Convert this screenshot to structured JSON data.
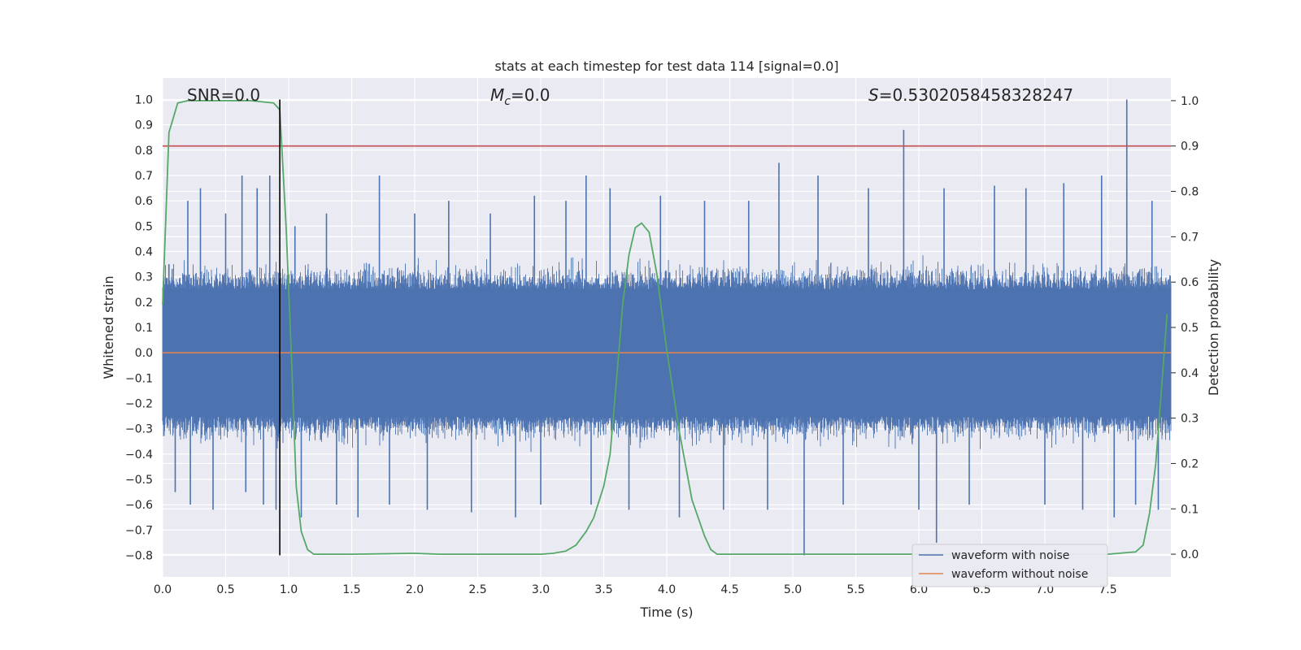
{
  "chart_data": {
    "type": "line",
    "title": "stats at each timestep for test data 114 [signal=0.0]",
    "xlabel": "Time (s)",
    "ylabel": "Whitened strain",
    "y2label": "Detection probability",
    "xlim": [
      0.0,
      8.0
    ],
    "ylim": [
      -0.885,
      1.085
    ],
    "y2lim": [
      -0.05,
      1.05
    ],
    "xticks": [
      "0.0",
      "0.5",
      "1.0",
      "1.5",
      "2.0",
      "2.5",
      "3.0",
      "3.5",
      "4.0",
      "4.5",
      "5.0",
      "5.5",
      "6.0",
      "6.5",
      "7.0",
      "7.5"
    ],
    "yticks": [
      "1.0",
      "0.9",
      "0.8",
      "0.7",
      "0.6",
      "0.5",
      "0.4",
      "0.3",
      "0.2",
      "0.1",
      "0.0",
      "−0.1",
      "−0.2",
      "−0.3",
      "−0.4",
      "−0.5",
      "−0.6",
      "−0.7",
      "−0.8"
    ],
    "y2ticks": [
      "1.0",
      "0.9",
      "0.8",
      "0.7",
      "0.6",
      "0.5",
      "0.4",
      "0.3",
      "0.2",
      "0.1",
      "0.0"
    ],
    "annotations": {
      "snr": "SNR=0.0",
      "mc_symbol": "M",
      "mc_sub": "c",
      "mc_value": "=0.0",
      "s_symbol": "S",
      "s_value": "=0.5302058458328247"
    },
    "grid": true,
    "legend_position": "lower right",
    "series": [
      {
        "name": "waveform with noise",
        "color": "#4c72b0",
        "axis": "left",
        "description_type": "noise",
        "noise_envelope": [
          0.25,
          -0.25
        ],
        "spikes": [
          {
            "x": 0.05,
            "y": 0.35
          },
          {
            "x": 0.1,
            "y": -0.55
          },
          {
            "x": 0.2,
            "y": 0.6
          },
          {
            "x": 0.22,
            "y": -0.6
          },
          {
            "x": 0.3,
            "y": 0.65
          },
          {
            "x": 0.4,
            "y": -0.62
          },
          {
            "x": 0.5,
            "y": 0.55
          },
          {
            "x": 0.63,
            "y": 0.7
          },
          {
            "x": 0.66,
            "y": -0.55
          },
          {
            "x": 0.75,
            "y": 0.65
          },
          {
            "x": 0.8,
            "y": -0.6
          },
          {
            "x": 0.85,
            "y": 0.7
          },
          {
            "x": 0.9,
            "y": -0.62
          },
          {
            "x": 1.05,
            "y": 0.5
          },
          {
            "x": 1.1,
            "y": -0.65
          },
          {
            "x": 1.3,
            "y": 0.55
          },
          {
            "x": 1.38,
            "y": -0.6
          },
          {
            "x": 1.55,
            "y": -0.65
          },
          {
            "x": 1.72,
            "y": 0.7
          },
          {
            "x": 1.8,
            "y": -0.6
          },
          {
            "x": 2.0,
            "y": 0.55
          },
          {
            "x": 2.1,
            "y": -0.62
          },
          {
            "x": 2.27,
            "y": 0.6
          },
          {
            "x": 2.45,
            "y": -0.63
          },
          {
            "x": 2.6,
            "y": 0.55
          },
          {
            "x": 2.8,
            "y": -0.65
          },
          {
            "x": 2.95,
            "y": 0.62
          },
          {
            "x": 3.0,
            "y": -0.6
          },
          {
            "x": 3.2,
            "y": 0.6
          },
          {
            "x": 3.36,
            "y": 0.7
          },
          {
            "x": 3.4,
            "y": -0.6
          },
          {
            "x": 3.55,
            "y": 0.65
          },
          {
            "x": 3.7,
            "y": -0.62
          },
          {
            "x": 3.95,
            "y": 0.62
          },
          {
            "x": 4.1,
            "y": -0.65
          },
          {
            "x": 4.3,
            "y": 0.6
          },
          {
            "x": 4.45,
            "y": -0.62
          },
          {
            "x": 4.65,
            "y": 0.6
          },
          {
            "x": 4.8,
            "y": -0.62
          },
          {
            "x": 4.89,
            "y": 0.75
          },
          {
            "x": 5.09,
            "y": -0.8
          },
          {
            "x": 5.2,
            "y": 0.7
          },
          {
            "x": 5.4,
            "y": -0.6
          },
          {
            "x": 5.6,
            "y": 0.65
          },
          {
            "x": 5.88,
            "y": 0.88
          },
          {
            "x": 6.0,
            "y": -0.62
          },
          {
            "x": 6.14,
            "y": -0.75
          },
          {
            "x": 6.2,
            "y": 0.65
          },
          {
            "x": 6.4,
            "y": -0.6
          },
          {
            "x": 6.6,
            "y": 0.66
          },
          {
            "x": 6.85,
            "y": 0.65
          },
          {
            "x": 7.0,
            "y": -0.6
          },
          {
            "x": 7.15,
            "y": 0.67
          },
          {
            "x": 7.3,
            "y": -0.62
          },
          {
            "x": 7.45,
            "y": 0.7
          },
          {
            "x": 7.55,
            "y": -0.65
          },
          {
            "x": 7.65,
            "y": 1.0
          },
          {
            "x": 7.72,
            "y": -0.6
          },
          {
            "x": 7.85,
            "y": 0.6
          },
          {
            "x": 7.9,
            "y": -0.62
          }
        ]
      },
      {
        "name": "waveform without noise",
        "color": "#dd8452",
        "axis": "left",
        "x": [
          0.0,
          8.0
        ],
        "y": [
          0.0,
          0.0
        ]
      },
      {
        "color": "#55a868",
        "axis": "right",
        "x": [
          0.0,
          0.05,
          0.12,
          0.2,
          0.3,
          0.5,
          0.7,
          0.88,
          0.93,
          0.98,
          1.02,
          1.06,
          1.1,
          1.15,
          1.2,
          1.5,
          2.0,
          2.2,
          3.0,
          3.1,
          3.2,
          3.28,
          3.36,
          3.42,
          3.5,
          3.55,
          3.6,
          3.65,
          3.7,
          3.75,
          3.8,
          3.86,
          3.92,
          4.0,
          4.1,
          4.2,
          4.3,
          4.35,
          4.4,
          4.6,
          5.0,
          6.0,
          7.0,
          7.5,
          7.72,
          7.78,
          7.83,
          7.88,
          7.93,
          7.97
        ],
        "y": [
          0.55,
          0.93,
          0.995,
          1.0,
          1.0,
          1.0,
          1.0,
          0.995,
          0.98,
          0.72,
          0.45,
          0.15,
          0.05,
          0.01,
          0.0,
          0.0,
          0.002,
          0.0,
          0.0,
          0.002,
          0.007,
          0.02,
          0.05,
          0.08,
          0.15,
          0.22,
          0.38,
          0.55,
          0.66,
          0.72,
          0.73,
          0.71,
          0.62,
          0.45,
          0.27,
          0.12,
          0.04,
          0.01,
          0.0,
          0.0,
          0.0,
          0.0,
          0.0,
          0.0,
          0.005,
          0.02,
          0.09,
          0.2,
          0.38,
          0.53
        ]
      },
      {
        "color": "#c44e52",
        "axis": "right",
        "description_type": "threshold",
        "x": [
          0.0,
          8.0
        ],
        "y": [
          0.9,
          0.9
        ]
      },
      {
        "color": "#000000",
        "axis": "left",
        "description_type": "vline",
        "x": [
          0.93,
          0.93
        ],
        "y": [
          -0.8,
          1.0
        ]
      }
    ]
  }
}
